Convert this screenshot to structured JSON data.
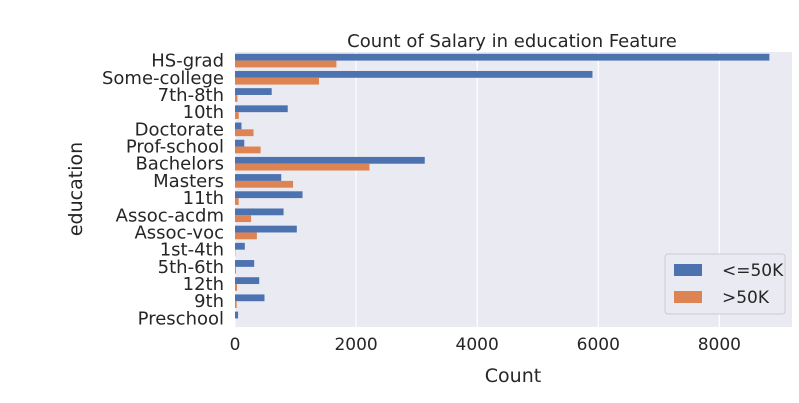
{
  "chart_data": {
    "type": "bar",
    "orientation": "horizontal",
    "title": "Count of Salary in education Feature",
    "xlabel": "Count",
    "ylabel": "education",
    "xlim": [
      0,
      9200
    ],
    "xticks": [
      0,
      2000,
      4000,
      6000,
      8000
    ],
    "grid": true,
    "legend_position": "lower-right",
    "categories": [
      "HS-grad",
      "Some-college",
      "7th-8th",
      "10th",
      "Doctorate",
      "Prof-school",
      "Bachelors",
      "Masters",
      "11th",
      "Assoc-acdm",
      "Assoc-voc",
      "1st-4th",
      "5th-6th",
      "12th",
      "9th",
      "Preschool"
    ],
    "series": [
      {
        "name": "<=50K",
        "color": "#4c72b0",
        "values": [
          8826,
          5904,
          606,
          871,
          107,
          153,
          3134,
          764,
          1115,
          802,
          1021,
          162,
          317,
          400,
          487,
          51
        ]
      },
      {
        "name": ">50K",
        "color": "#dd8452",
        "values": [
          1675,
          1387,
          40,
          62,
          306,
          423,
          2221,
          959,
          60,
          265,
          361,
          6,
          16,
          33,
          27,
          0
        ]
      }
    ]
  }
}
